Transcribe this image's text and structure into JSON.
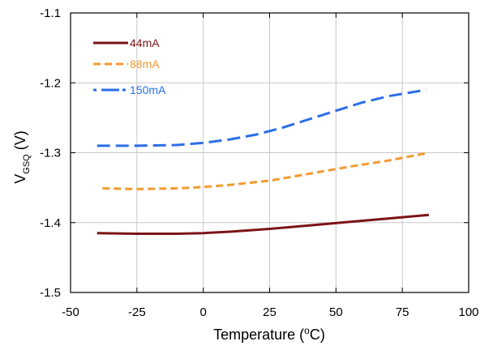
{
  "chart_data": {
    "type": "line",
    "xlabel": {
      "base": "Temperature (",
      "sup": "o",
      "tail": "C)"
    },
    "ylabel": {
      "base": "V",
      "sub": "GSQ",
      "tail": " (V)"
    },
    "xlim": [
      -50,
      100
    ],
    "ylim": [
      -1.5,
      -1.1
    ],
    "x_ticks": [
      -50,
      -25,
      0,
      25,
      50,
      75,
      100
    ],
    "y_ticks": [
      -1.5,
      -1.4,
      -1.3,
      -1.2,
      -1.1
    ],
    "x_tick_labels": [
      "-50",
      "-25",
      "0",
      "25",
      "50",
      "75",
      "100"
    ],
    "y_tick_labels": [
      "-1.5",
      "-1.4",
      "-1.3",
      "-1.2",
      "-1.1"
    ],
    "grid": true,
    "legend_position": "top-left",
    "series": [
      {
        "name": "44mA",
        "color": "#7b1416",
        "style": "solid",
        "x": [
          -40,
          -25,
          -10,
          0,
          10,
          25,
          40,
          55,
          70,
          85
        ],
        "y": [
          -1.415,
          -1.416,
          -1.416,
          -1.415,
          -1.413,
          -1.409,
          -1.404,
          -1.399,
          -1.394,
          -1.389
        ]
      },
      {
        "name": "88mA",
        "color": "#f39a30",
        "style": "dashed",
        "x": [
          -38,
          -25,
          -10,
          0,
          10,
          25,
          40,
          55,
          70,
          85
        ],
        "y": [
          -1.351,
          -1.352,
          -1.351,
          -1.349,
          -1.346,
          -1.34,
          -1.33,
          -1.32,
          -1.311,
          -1.3
        ]
      },
      {
        "name": "150mA",
        "color": "#2a6ee8",
        "style": "dashed",
        "x": [
          -40,
          -25,
          -10,
          0,
          10,
          20,
          30,
          40,
          50,
          60,
          70,
          84
        ],
        "y": [
          -1.29,
          -1.29,
          -1.289,
          -1.286,
          -1.281,
          -1.274,
          -1.264,
          -1.252,
          -1.24,
          -1.228,
          -1.219,
          -1.21
        ]
      }
    ]
  }
}
